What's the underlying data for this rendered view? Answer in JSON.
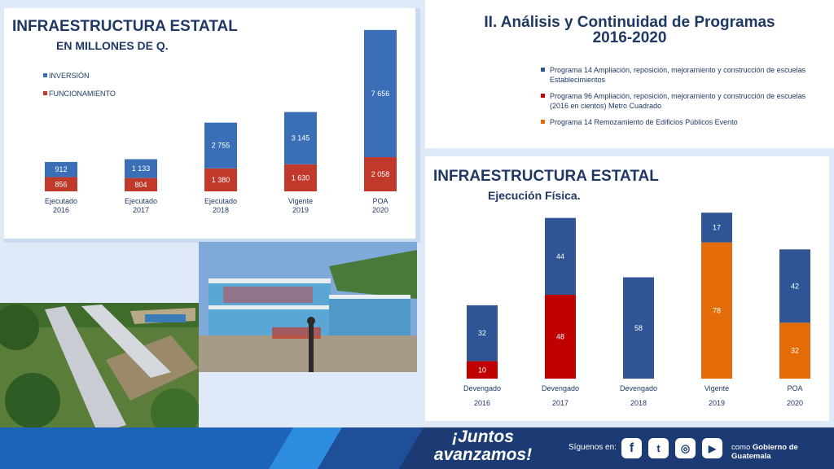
{
  "panel_left": {
    "title": "INFRAESTRUCTURA ESTATAL",
    "subtitle": "EN MILLONES DE Q."
  },
  "panel_top_right": {
    "title_line1": "II. Análisis y Continuidad de Programas",
    "title_line2": "2016-2020",
    "legend": [
      {
        "text_line1": "Programa 14 Ampliación, reposición, mejoramiento y construcción de escuelas",
        "text_line2": "Establecimientos",
        "color": "#2f5597"
      },
      {
        "text_line1": "Programa 96 Ampliación, reposición, mejoramiento y construcción de escuelas",
        "text_line2": "(2016 en cientos) Metro Cuadrado",
        "color": "#c00000"
      },
      {
        "text_line1": "Programa 14 Remozamiento de Edificios Públicos Evento",
        "text_line2": "",
        "color": "#e36c09"
      }
    ]
  },
  "panel_bottom_right": {
    "title": "INFRAESTRUCTURA ESTATAL",
    "subtitle": "Ejecución Física."
  },
  "chart_data": [
    {
      "type": "bar",
      "stacked": true,
      "title": "INFRAESTRUCTURA ESTATAL",
      "subtitle": "EN MILLONES DE Q.",
      "categories": [
        [
          "Ejecutado",
          "2016"
        ],
        [
          "Ejecutado",
          "2017"
        ],
        [
          "Ejecutado",
          "2018"
        ],
        [
          "Vigente",
          "2019"
        ],
        [
          "POA",
          "2020"
        ]
      ],
      "series": [
        {
          "name": "FUNCIONAMIENTO",
          "color": "#c0392b",
          "values": [
            856,
            804,
            1380,
            1630,
            2058
          ],
          "labels": [
            "856",
            "804",
            "1 380",
            "1 630",
            "2 058"
          ]
        },
        {
          "name": "INVERSIÓN",
          "color": "#3a6fb8",
          "values": [
            912,
            1133,
            2755,
            3145,
            7656
          ],
          "labels": [
            "912",
            "1 133",
            "2 755",
            "3 145",
            "7 656"
          ]
        }
      ],
      "legend_position": "top-left",
      "grid": false,
      "ylim": [
        0,
        11000
      ]
    },
    {
      "type": "bar",
      "stacked": true,
      "title": "INFRAESTRUCTURA ESTATAL",
      "subtitle": "Ejecución Física.",
      "categories": [
        [
          "Devengado",
          "2016"
        ],
        [
          "Devengado",
          "2017"
        ],
        [
          "Devengado",
          "2018"
        ],
        [
          "Vigente",
          "2019"
        ],
        [
          "POA",
          "2020"
        ]
      ],
      "segments": [
        [
          {
            "value": 10,
            "color": "#c00000"
          },
          {
            "value": 32,
            "color": "#2f5597"
          }
        ],
        [
          {
            "value": 48,
            "color": "#c00000"
          },
          {
            "value": 44,
            "color": "#2f5597"
          }
        ],
        [
          {
            "value": 58,
            "color": "#2f5597"
          }
        ],
        [
          {
            "value": 78,
            "color": "#e36c09"
          },
          {
            "value": 17,
            "color": "#2f5597"
          }
        ],
        [
          {
            "value": 32,
            "color": "#e36c09"
          },
          {
            "value": 42,
            "color": "#2f5597"
          }
        ]
      ],
      "grid": false,
      "ylim": [
        0,
        95
      ]
    }
  ],
  "footer": {
    "slogan_line1": "¡Juntos",
    "slogan_line2": "avanzamos!",
    "follow_label": "Síguenos en:",
    "handle_prefix": "como",
    "handle": "Gobierno de Guatemala",
    "social_icons": [
      "facebook-icon",
      "twitter-icon",
      "instagram-icon",
      "youtube-icon"
    ]
  }
}
